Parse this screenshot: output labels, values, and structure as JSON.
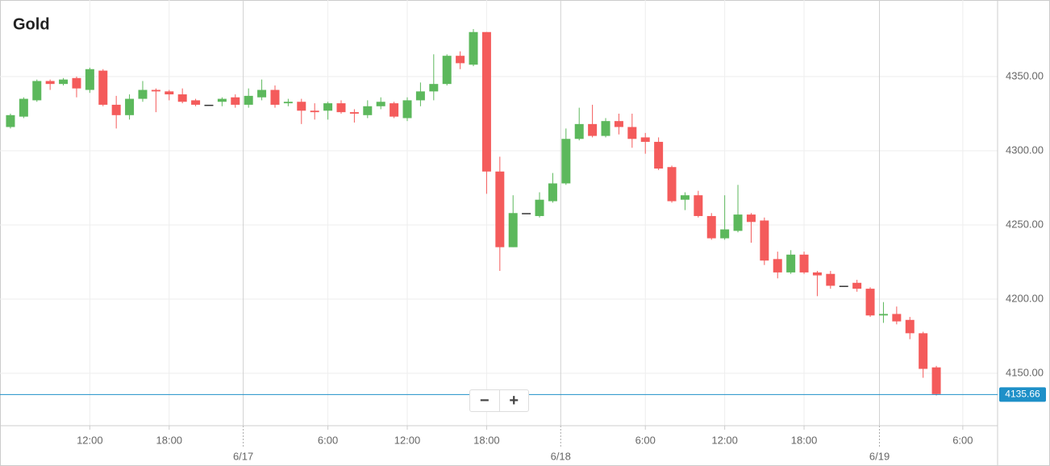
{
  "chart_data": {
    "type": "candlestick",
    "title": "Gold",
    "x": [
      0,
      1,
      2,
      3,
      4,
      5,
      6,
      7,
      8,
      9,
      10,
      11,
      12,
      13,
      14,
      15,
      16,
      17,
      18,
      19,
      20,
      21,
      22,
      23,
      24,
      25,
      26,
      27,
      28,
      29,
      30,
      31,
      32,
      33,
      34,
      35,
      36,
      37,
      38,
      39,
      40,
      41,
      42,
      43,
      44,
      45,
      46,
      47,
      48,
      49,
      50,
      51,
      52,
      53,
      54,
      55,
      56,
      57,
      58,
      59,
      60,
      61,
      62,
      63,
      64,
      65,
      66,
      67,
      68,
      69,
      70
    ],
    "open": [
      4316,
      4323,
      4334,
      4347,
      4345,
      4349,
      4341,
      4354,
      4331,
      4324,
      4335,
      4341,
      4340,
      4338,
      4334,
      4331,
      4333,
      4336,
      4331,
      4336,
      4341,
      4332,
      4333,
      4327,
      4327,
      4332,
      4326,
      4324,
      4330,
      4332,
      4322,
      4334,
      4340,
      4345,
      4364,
      4358,
      4380,
      4286,
      4235,
      4258,
      4256,
      4266,
      4278,
      4308,
      4318,
      4310,
      4320,
      4316,
      4309,
      4306,
      4289,
      4267,
      4270,
      4256,
      4241,
      4246,
      4257,
      4253,
      4227,
      4218,
      4230,
      4218,
      4217,
      4209,
      4211,
      4207,
      4189,
      4190,
      4186,
      4177,
      4154
    ],
    "high": [
      4325,
      4336,
      4348,
      4348,
      4349,
      4350,
      4356,
      4355,
      4337,
      4338,
      4347,
      4342,
      4341,
      4342,
      4335,
      4331,
      4336,
      4338,
      4342,
      4348,
      4344,
      4335,
      4335,
      4332,
      4333,
      4334,
      4328,
      4334,
      4336,
      4333,
      4336,
      4346,
      4365,
      4365,
      4367,
      4382,
      4380,
      4296,
      4270,
      4258,
      4272,
      4285,
      4315,
      4329,
      4331,
      4322,
      4325,
      4325,
      4312,
      4309,
      4290,
      4272,
      4273,
      4258,
      4270,
      4277,
      4258,
      4255,
      4232,
      4233,
      4232,
      4219,
      4219,
      4209,
      4213,
      4208,
      4198,
      4195,
      4188,
      4178,
      4155
    ],
    "low": [
      4315,
      4322,
      4333,
      4341,
      4344,
      4336,
      4339,
      4330,
      4315,
      4321,
      4333,
      4326,
      4334,
      4332,
      4330,
      4331,
      4330,
      4329,
      4329,
      4334,
      4329,
      4330,
      4318,
      4321,
      4321,
      4325,
      4319,
      4322,
      4328,
      4322,
      4320,
      4330,
      4334,
      4344,
      4355,
      4357,
      4271,
      4219,
      4235,
      4258,
      4255,
      4265,
      4277,
      4307,
      4309,
      4309,
      4311,
      4302,
      4298,
      4287,
      4265,
      4260,
      4255,
      4240,
      4240,
      4245,
      4238,
      4223,
      4214,
      4217,
      4217,
      4202,
      4207,
      4209,
      4205,
      4188,
      4184,
      4183,
      4173,
      4147,
      4135
    ],
    "close": [
      4324,
      4335,
      4347,
      4345,
      4348,
      4342,
      4355,
      4331,
      4324,
      4335,
      4341,
      4340,
      4338,
      4333,
      4331,
      4331,
      4335,
      4331,
      4337,
      4341,
      4331,
      4333,
      4327,
      4326,
      4332,
      4326,
      4325,
      4330,
      4333,
      4323,
      4334,
      4340,
      4345,
      4364,
      4359,
      4380,
      4286,
      4235,
      4258,
      4258,
      4267,
      4278,
      4308,
      4318,
      4310,
      4320,
      4316,
      4308,
      4306,
      4288,
      4266,
      4270,
      4256,
      4241,
      4247,
      4257,
      4252,
      4226,
      4218,
      4230,
      4218,
      4216,
      4209,
      4209,
      4207,
      4189,
      4190,
      4185,
      4177,
      4153,
      4136
    ],
    "up_color": "#5cb85c",
    "down_color": "#f45b5b",
    "flat_color": "#333333",
    "xlim": [
      -0.79,
      74.63
    ],
    "ylim": [
      4114.7,
      4401.6
    ],
    "yticks": [
      {
        "value": 4150,
        "label": "4150.00"
      },
      {
        "value": 4200,
        "label": "4200.00"
      },
      {
        "value": 4250,
        "label": "4250.00"
      },
      {
        "value": 4300,
        "label": "4300.00"
      },
      {
        "value": 4350,
        "label": "4350.00"
      }
    ],
    "xticks": [
      {
        "value": 6,
        "label": "12:00"
      },
      {
        "value": 12,
        "label": "18:00"
      },
      {
        "value": 24,
        "label": "6:00"
      },
      {
        "value": 30,
        "label": "12:00"
      },
      {
        "value": 36,
        "label": "18:00"
      },
      {
        "value": 48,
        "label": "6:00"
      },
      {
        "value": 54,
        "label": "12:00"
      },
      {
        "value": 60,
        "label": "18:00"
      },
      {
        "value": 72,
        "label": "6:00"
      }
    ],
    "date_ticks": [
      {
        "value": 17.6,
        "label": "6/17"
      },
      {
        "value": 41.6,
        "label": "6/18"
      },
      {
        "value": 65.7,
        "label": "6/19"
      }
    ],
    "grid": true,
    "last_price": 4135.66,
    "last_price_color": "#1e90c8"
  }
}
